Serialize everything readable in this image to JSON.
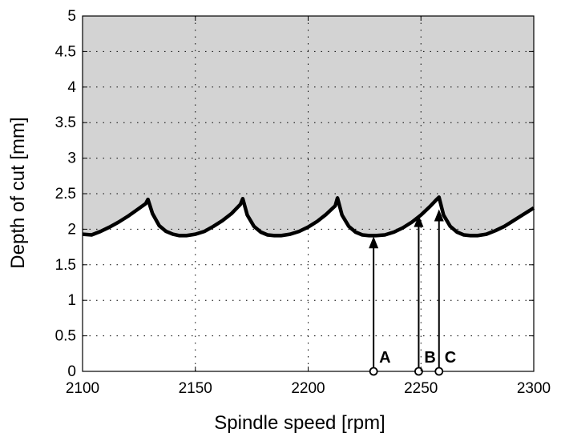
{
  "chart_data": {
    "type": "area",
    "xlabel": "Spindle speed [rpm]",
    "ylabel": "Depth of cut [mm]",
    "xlim": [
      2100,
      2300
    ],
    "ylim": [
      0,
      5
    ],
    "xticks": [
      2100,
      2150,
      2200,
      2250,
      2300
    ],
    "xtick_labels": [
      "2100",
      "2150",
      "2200",
      "2250",
      "2300"
    ],
    "yticks": [
      0,
      0.5,
      1,
      1.5,
      2,
      2.5,
      3,
      3.5,
      4,
      4.5,
      5
    ],
    "ytick_labels": [
      "0",
      "0.5",
      "1",
      "1.5",
      "2",
      "2.5",
      "3",
      "3.5",
      "4",
      "4.5",
      "5"
    ],
    "grid": "dotted",
    "unstable_region_color": "#d3d3d3",
    "curve_color": "#000000",
    "series": [
      {
        "x": [
          2100,
          2104,
          2108,
          2112,
          2116,
          2120,
          2124,
          2128,
          2129,
          2131,
          2134,
          2137,
          2140,
          2143,
          2146,
          2150,
          2154,
          2158,
          2162,
          2166,
          2170,
          2171,
          2173,
          2176,
          2179,
          2182,
          2185,
          2188,
          2192,
          2196,
          2200,
          2204,
          2208,
          2212,
          2213,
          2215,
          2218,
          2221,
          2224,
          2227,
          2230,
          2234,
          2238,
          2242,
          2246,
          2250,
          2254,
          2257,
          2258,
          2260,
          2263,
          2266,
          2269,
          2272,
          2275,
          2279,
          2283,
          2287,
          2291,
          2295,
          2300
        ],
        "y": [
          1.93,
          1.92,
          1.97,
          2.03,
          2.1,
          2.18,
          2.27,
          2.36,
          2.42,
          2.22,
          2.05,
          1.97,
          1.93,
          1.91,
          1.91,
          1.93,
          1.97,
          2.04,
          2.12,
          2.22,
          2.35,
          2.43,
          2.2,
          2.04,
          1.96,
          1.92,
          1.91,
          1.91,
          1.93,
          1.97,
          2.03,
          2.11,
          2.21,
          2.33,
          2.44,
          2.2,
          2.04,
          1.96,
          1.92,
          1.91,
          1.91,
          1.92,
          1.96,
          2.02,
          2.1,
          2.2,
          2.32,
          2.42,
          2.45,
          2.2,
          2.04,
          1.96,
          1.92,
          1.91,
          1.91,
          1.93,
          1.98,
          2.04,
          2.12,
          2.2,
          2.3
        ]
      }
    ],
    "points": [
      {
        "label": "A",
        "x": 2229,
        "y_start": 0,
        "y_end": 1.9
      },
      {
        "label": "B",
        "x": 2249,
        "y_start": 0,
        "y_end": 2.2
      },
      {
        "label": "C",
        "x": 2258,
        "y_start": 0,
        "y_end": 2.28
      }
    ]
  }
}
